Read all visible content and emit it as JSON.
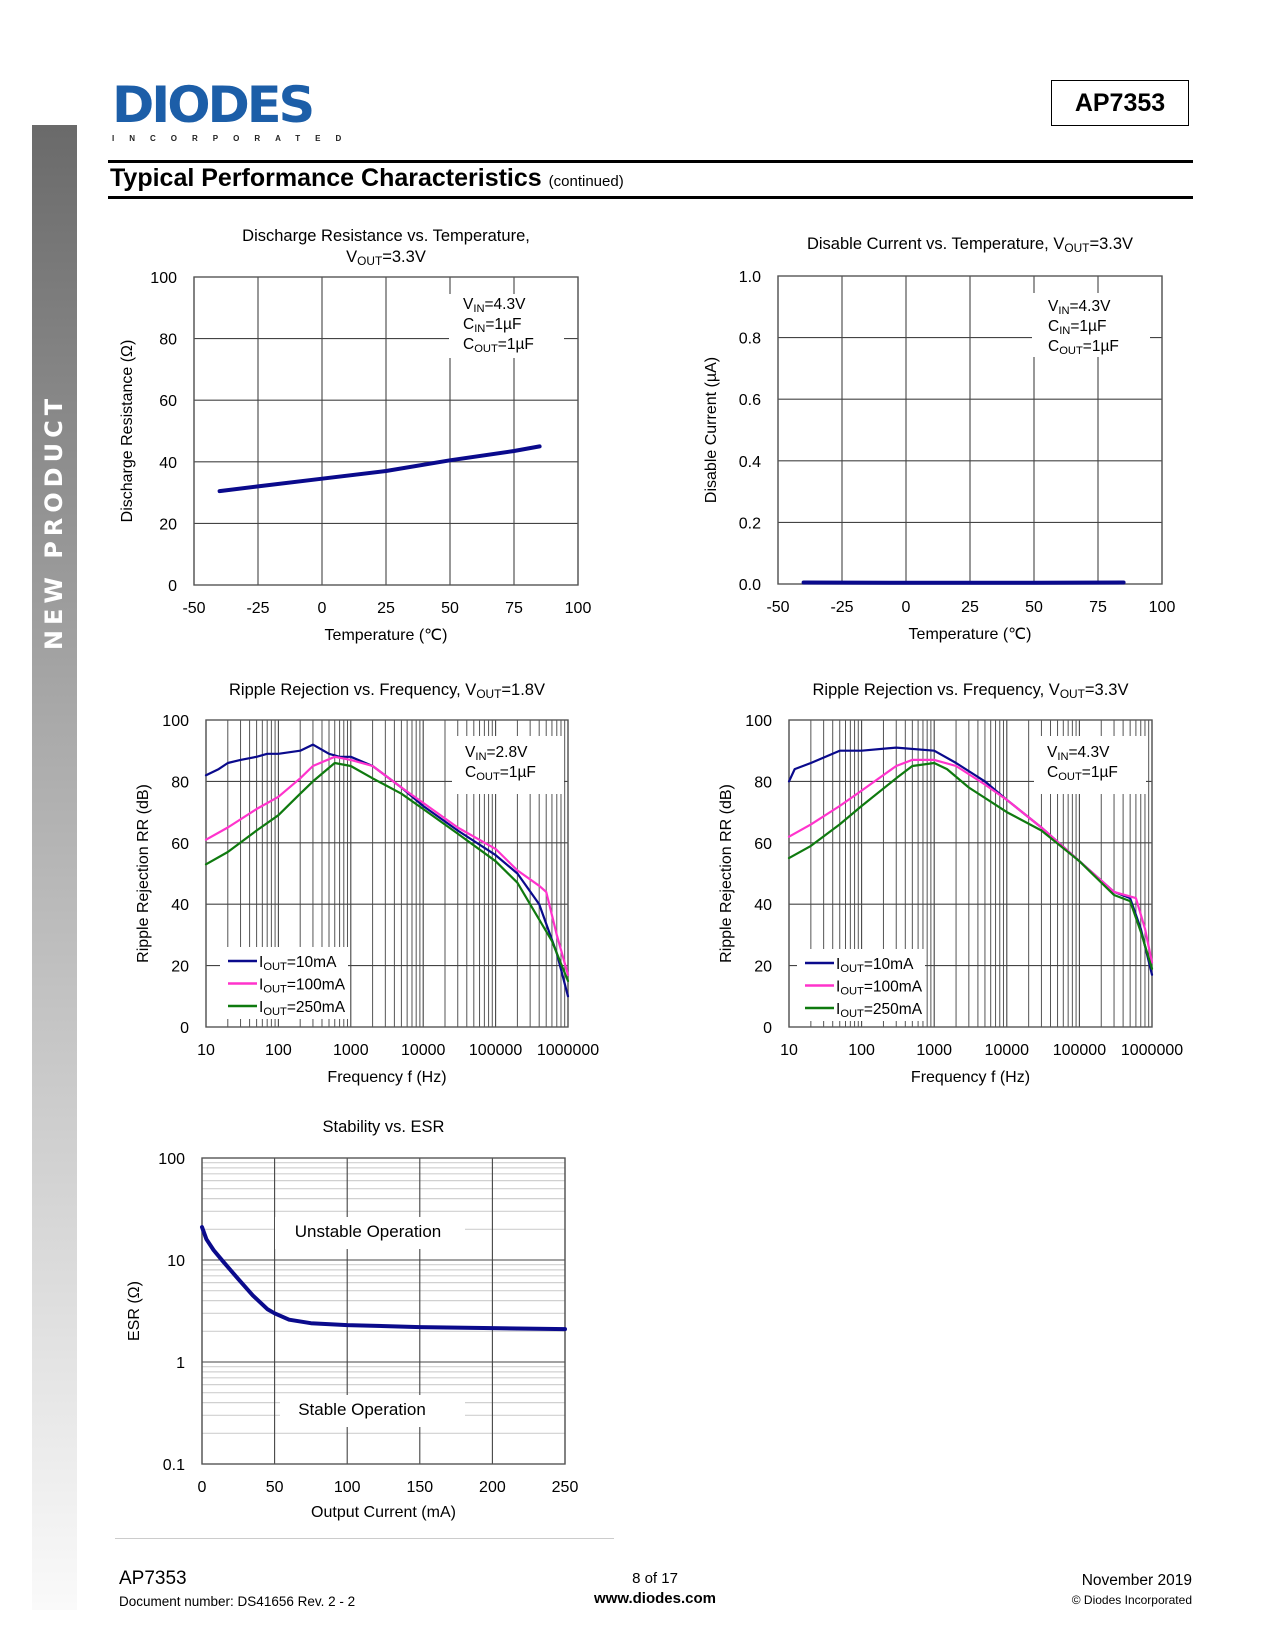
{
  "sidebar": {
    "label": "NEW PRODUCT"
  },
  "logo": {
    "main": "DIODES",
    "sub": "INCORPORATED"
  },
  "header": {
    "part_number": "AP7353",
    "title": "Typical Performance Characteristics",
    "title_suffix": "(continued)"
  },
  "footer": {
    "part": "AP7353",
    "doc_number": "Document number: DS41656  Rev. 2 - 2",
    "page": "8 of 17",
    "website": "www.diodes.com",
    "date": "November 2019",
    "copyright": "© Diodes Incorporated"
  },
  "colors": {
    "logo_blue": "#1c5ea8",
    "series_10mA": "#0a0a8c",
    "series_100mA": "#ff33cc",
    "series_250mA": "#0f7a0f",
    "curve": "#0a0a8c"
  },
  "chart_data": [
    {
      "type": "line",
      "title": [
        "Discharge Resistance vs. Temperature,",
        "V_{OUT}=3.3V"
      ],
      "xlabel": "Temperature (℃)",
      "ylabel": "Discharge Resistance (Ω)",
      "xlim": [
        -50,
        100
      ],
      "ylim": [
        0,
        100
      ],
      "xticks": [
        -50,
        -25,
        0,
        25,
        50,
        75,
        100
      ],
      "yticks": [
        0,
        20,
        40,
        60,
        80,
        100
      ],
      "xscale": "linear",
      "yscale": "linear",
      "grid": true,
      "annotations": [
        "V_{IN}=4.3V",
        "C_{IN}=1µF",
        "C_{OUT}=1µF"
      ],
      "series": [
        {
          "color": "#0a0a8c",
          "x": [
            -40,
            -25,
            0,
            25,
            50,
            75,
            85
          ],
          "y": [
            30.5,
            32,
            34.5,
            37,
            40.5,
            43.5,
            45
          ]
        }
      ]
    },
    {
      "type": "line",
      "title": [
        "Disable Current vs. Temperature, V_{OUT}=3.3V"
      ],
      "xlabel": "Temperature (℃)",
      "ylabel": "Disable Current (µA)",
      "xlim": [
        -50,
        100
      ],
      "ylim": [
        0,
        1.0
      ],
      "xticks": [
        -50,
        -25,
        0,
        25,
        50,
        75,
        100
      ],
      "yticks": [
        "0.0",
        "0.2",
        "0.4",
        "0.6",
        "0.8",
        "1.0"
      ],
      "xscale": "linear",
      "yscale": "linear",
      "grid": true,
      "annotations": [
        "V_{IN}=4.3V",
        "C_{IN}=1µF",
        "C_{OUT}=1µF"
      ],
      "series": [
        {
          "color": "#0a0a8c",
          "x": [
            -40,
            0,
            50,
            85
          ],
          "y": [
            0.005,
            0.004,
            0.004,
            0.005
          ]
        }
      ]
    },
    {
      "type": "line",
      "title": [
        "Ripple Rejection vs. Frequency, V_{OUT}=1.8V"
      ],
      "xlabel": "Frequency f (Hz)",
      "ylabel": "Ripple Rejection RR (dB)",
      "xlim": [
        10,
        1000000
      ],
      "ylim": [
        0,
        100
      ],
      "xticks": [
        10,
        100,
        1000,
        10000,
        100000,
        1000000
      ],
      "yticks": [
        0,
        20,
        40,
        60,
        80,
        100
      ],
      "xscale": "log",
      "yscale": "linear",
      "grid": true,
      "legend": "bottom-left",
      "annotations": [
        "V_{IN}=2.8V",
        "C_{OUT}=1µF"
      ],
      "series": [
        {
          "name": "I_{OUT}=10mA",
          "color": "#0a0a8c",
          "x": [
            10,
            15,
            20,
            30,
            50,
            70,
            100,
            200,
            300,
            500,
            700,
            1000,
            2000,
            5000,
            10000,
            30000,
            100000,
            200000,
            400000,
            700000,
            1000000
          ],
          "y": [
            82,
            84,
            86,
            87,
            88,
            89,
            89,
            90,
            92,
            89,
            88,
            88,
            85,
            78,
            72,
            64,
            56,
            50,
            40,
            24,
            10
          ]
        },
        {
          "name": "I_{OUT}=100mA",
          "color": "#ff33cc",
          "x": [
            10,
            20,
            50,
            100,
            200,
            300,
            600,
            1000,
            2000,
            5000,
            10000,
            30000,
            100000,
            200000,
            400000,
            500000,
            700000,
            1000000
          ],
          "y": [
            61,
            65,
            71,
            75,
            81,
            85,
            88,
            87,
            85,
            78,
            73,
            65,
            58,
            51,
            46,
            44,
            30,
            17
          ]
        },
        {
          "name": "I_{OUT}=250mA",
          "color": "#0f7a0f",
          "x": [
            10,
            20,
            50,
            100,
            200,
            300,
            600,
            1000,
            2000,
            5000,
            10000,
            30000,
            100000,
            200000,
            300000,
            600000,
            1000000
          ],
          "y": [
            53,
            57,
            64,
            69,
            76,
            80,
            86,
            85,
            81,
            76,
            71,
            63,
            54,
            47,
            40,
            28,
            15
          ]
        }
      ]
    },
    {
      "type": "line",
      "title": [
        "Ripple Rejection vs. Frequency, V_{OUT}=3.3V"
      ],
      "xlabel": "Frequency f (Hz)",
      "ylabel": "Ripple Rejection RR (dB)",
      "xlim": [
        10,
        1000000
      ],
      "ylim": [
        0,
        100
      ],
      "xticks": [
        10,
        100,
        1000,
        10000,
        100000,
        1000000
      ],
      "yticks": [
        0,
        20,
        40,
        60,
        80,
        100
      ],
      "xscale": "log",
      "yscale": "linear",
      "grid": true,
      "legend": "bottom-left",
      "annotations": [
        "V_{IN}=4.3V",
        "C_{OUT}=1µF"
      ],
      "series": [
        {
          "name": "I_{OUT}=10mA",
          "color": "#0a0a8c",
          "x": [
            10,
            12,
            20,
            50,
            100,
            300,
            1000,
            2000,
            5000,
            10000,
            30000,
            100000,
            300000,
            500000,
            700000,
            1000000
          ],
          "y": [
            80,
            84,
            86,
            90,
            90,
            91,
            90,
            86,
            80,
            74,
            65,
            54,
            44,
            42,
            32,
            17
          ]
        },
        {
          "name": "I_{OUT}=100mA",
          "color": "#ff33cc",
          "x": [
            10,
            20,
            50,
            100,
            300,
            500,
            1000,
            2000,
            5000,
            10000,
            30000,
            100000,
            300000,
            600000,
            800000,
            1000000
          ],
          "y": [
            62,
            66,
            72,
            77,
            85,
            87,
            87,
            85,
            79,
            74,
            65,
            54,
            44,
            42,
            32,
            21
          ]
        },
        {
          "name": "I_{OUT}=250mA",
          "color": "#0f7a0f",
          "x": [
            10,
            20,
            50,
            100,
            300,
            500,
            1000,
            1500,
            3000,
            10000,
            30000,
            100000,
            300000,
            500000,
            700000,
            1000000
          ],
          "y": [
            55,
            59,
            66,
            72,
            81,
            85,
            86,
            84,
            78,
            70,
            64,
            54,
            43,
            41,
            31,
            19
          ]
        }
      ]
    },
    {
      "type": "line",
      "title": [
        "Stability vs. ESR"
      ],
      "xlabel": "Output Current (mA)",
      "ylabel": "ESR (Ω)",
      "xlim": [
        0,
        250
      ],
      "ylim": [
        0.1,
        100
      ],
      "xticks": [
        0,
        50,
        100,
        150,
        200,
        250
      ],
      "yticks": [
        "0.1",
        "1",
        "10",
        "100"
      ],
      "xscale": "linear",
      "yscale": "log",
      "grid": true,
      "region_labels": [
        "Unstable Operation",
        "Stable Operation"
      ],
      "series": [
        {
          "color": "#0a0a8c",
          "x": [
            0,
            3,
            8,
            15,
            25,
            35,
            45,
            50,
            60,
            75,
            100,
            150,
            200,
            250
          ],
          "y": [
            21,
            16,
            12.5,
            9.5,
            6.5,
            4.5,
            3.3,
            3.0,
            2.6,
            2.4,
            2.3,
            2.2,
            2.15,
            2.1
          ]
        }
      ]
    }
  ]
}
